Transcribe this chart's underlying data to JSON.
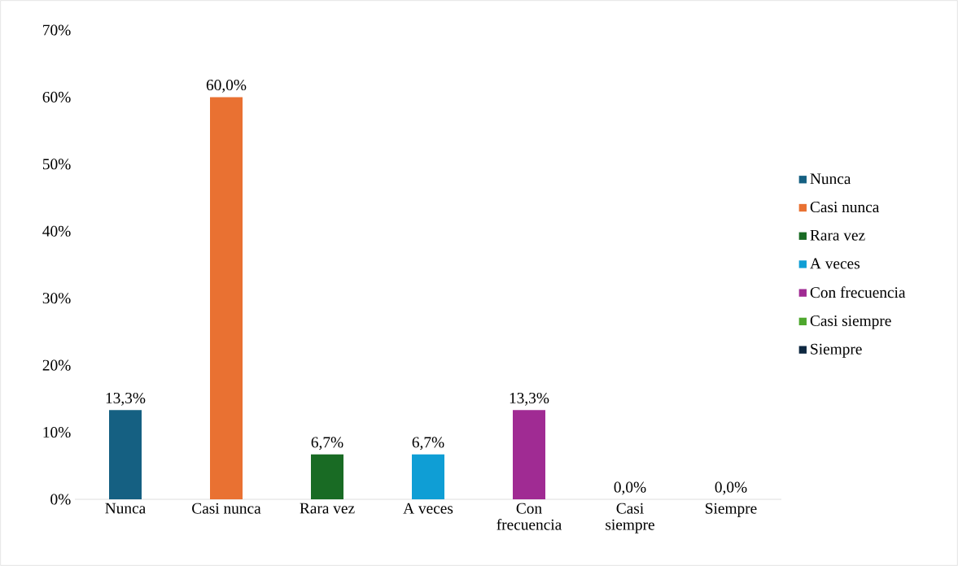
{
  "chart_data": {
    "type": "bar",
    "categories": [
      "Nunca",
      "Casi nunca",
      "Rara vez",
      "A veces",
      "Con frecuencia",
      "Casi siempre",
      "Siempre"
    ],
    "series": [
      {
        "name": "Nunca",
        "color": "#156082",
        "values": [
          13.3,
          null,
          null,
          null,
          null,
          null,
          null
        ],
        "value_labels": [
          "13,3%",
          null,
          null,
          null,
          null,
          null,
          null
        ]
      },
      {
        "name": "Casi nunca",
        "color": "#e97132",
        "values": [
          null,
          60.0,
          null,
          null,
          null,
          null,
          null
        ],
        "value_labels": [
          null,
          "60,0%",
          null,
          null,
          null,
          null,
          null
        ]
      },
      {
        "name": "Rara vez",
        "color": "#196b24",
        "values": [
          null,
          null,
          6.7,
          null,
          null,
          null,
          null
        ],
        "value_labels": [
          null,
          null,
          "6,7%",
          null,
          null,
          null,
          null
        ]
      },
      {
        "name": "A veces",
        "color": "#0f9ed5",
        "values": [
          null,
          null,
          null,
          6.7,
          null,
          null,
          null
        ],
        "value_labels": [
          null,
          null,
          null,
          "6,7%",
          null,
          null,
          null
        ]
      },
      {
        "name": "Con frecuencia",
        "color": "#a02b93",
        "values": [
          null,
          null,
          null,
          null,
          13.3,
          null,
          null
        ],
        "value_labels": [
          null,
          null,
          null,
          null,
          "13,3%",
          null,
          null
        ]
      },
      {
        "name": "Casi siempre",
        "color": "#4ea72e",
        "values": [
          null,
          null,
          null,
          null,
          null,
          0.0,
          null
        ],
        "value_labels": [
          null,
          null,
          null,
          null,
          null,
          "0,0%",
          null
        ]
      },
      {
        "name": "Siempre",
        "color": "#0e2841",
        "values": [
          null,
          null,
          null,
          null,
          null,
          null,
          0.0
        ],
        "value_labels": [
          null,
          null,
          null,
          null,
          null,
          null,
          "0,0%"
        ]
      }
    ],
    "ylim": [
      0,
      70
    ],
    "yticks": [
      {
        "value": 0,
        "label": "0%"
      },
      {
        "value": 10,
        "label": "10%"
      },
      {
        "value": 20,
        "label": "20%"
      },
      {
        "value": 30,
        "label": "30%"
      },
      {
        "value": 40,
        "label": "40%"
      },
      {
        "value": 50,
        "label": "50%"
      },
      {
        "value": 60,
        "label": "60%"
      },
      {
        "value": 70,
        "label": "70%"
      }
    ],
    "grid": false,
    "legend": "right"
  }
}
